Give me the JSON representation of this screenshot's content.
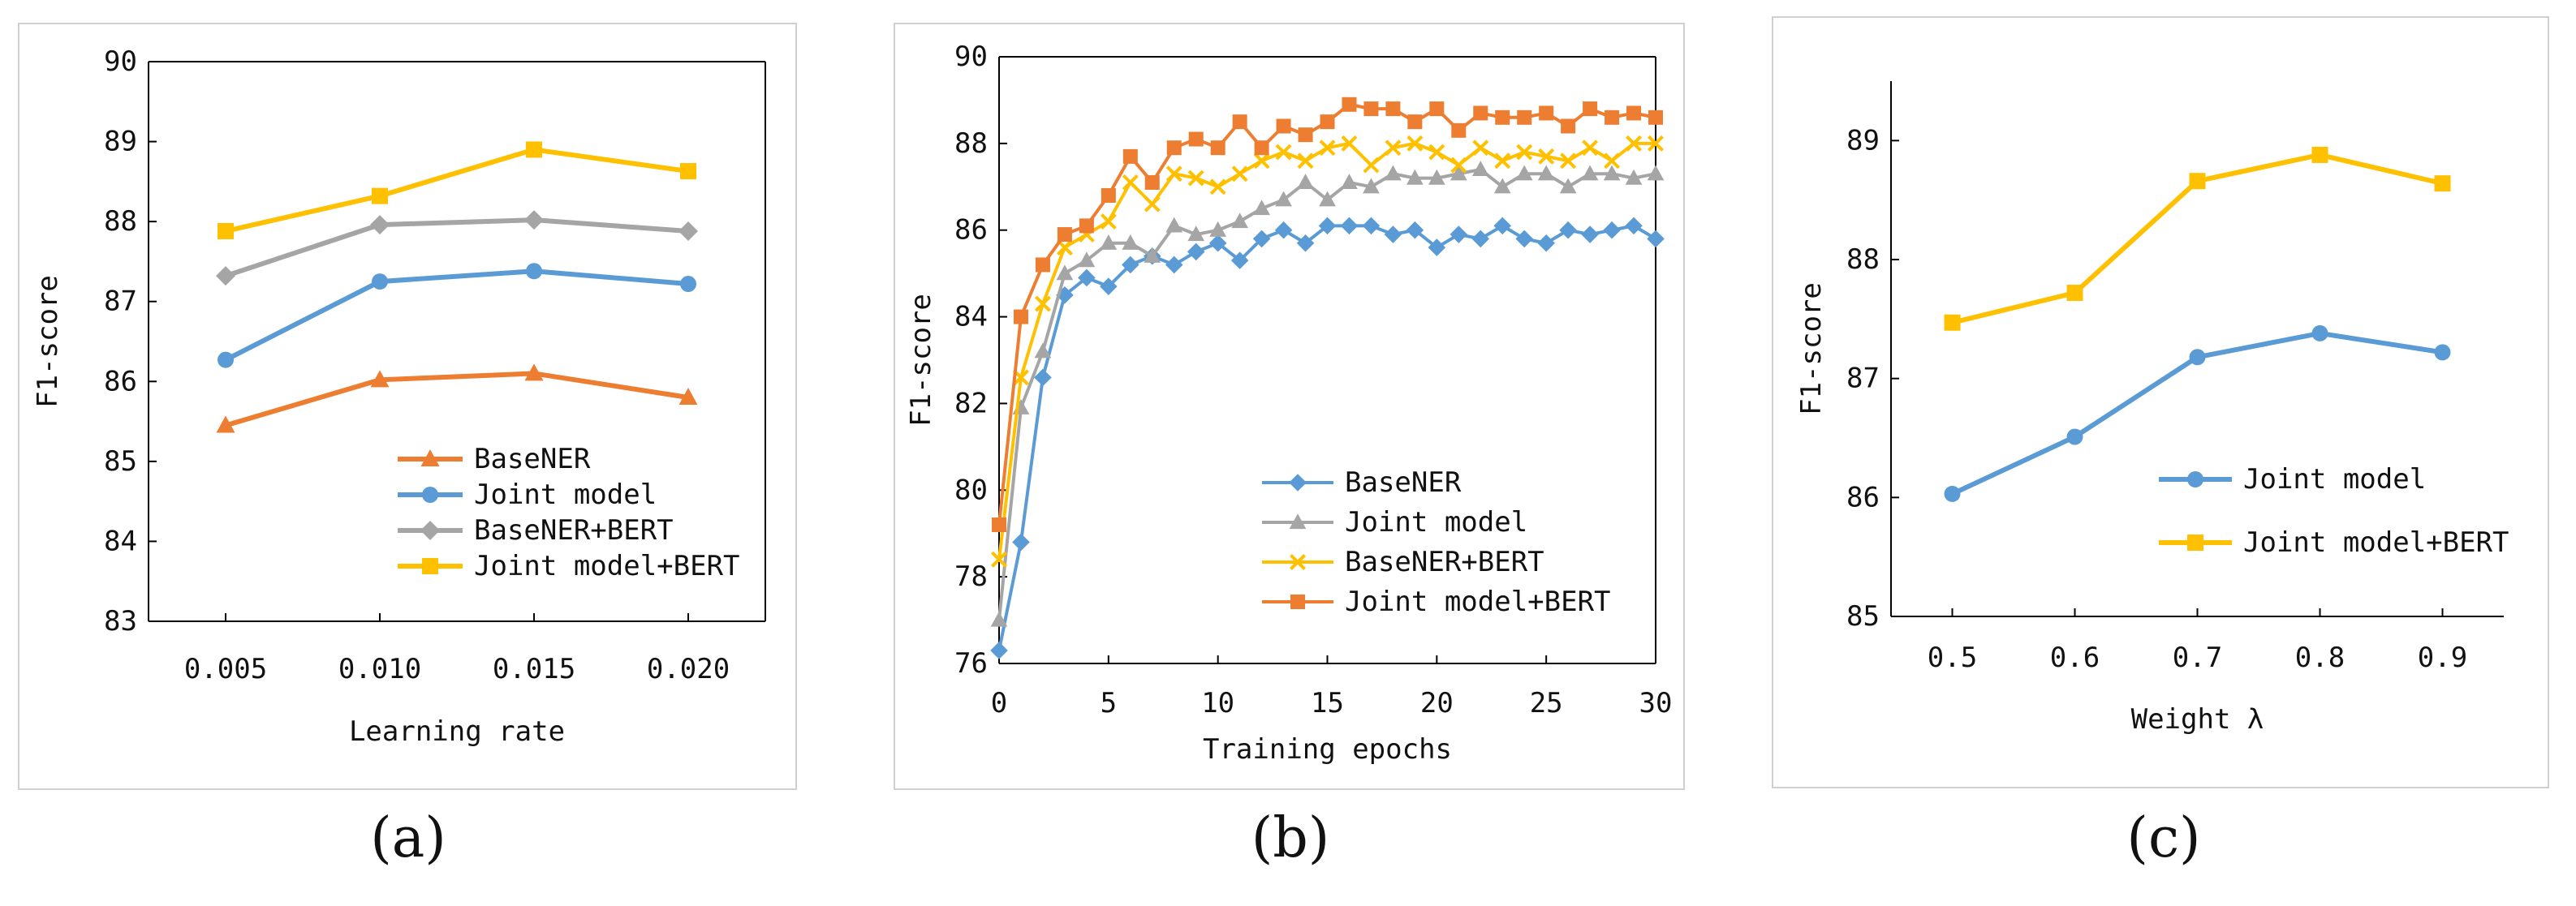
{
  "panel_labels": [
    "(a)",
    "(b)",
    "(c)"
  ],
  "chart_data": [
    {
      "id": "a",
      "type": "line",
      "title": "",
      "xlabel": "Learning rate",
      "ylabel": "F1-score",
      "categories": [
        "0.005",
        "0.010",
        "0.015",
        "0.020"
      ],
      "ylim": [
        83,
        90
      ],
      "yticks": [
        83,
        84,
        85,
        86,
        87,
        88,
        89,
        90
      ],
      "grid": false,
      "legend_position": "bottom-right",
      "series": [
        {
          "name": "BaseNER",
          "marker": "triangle",
          "color": "#ED7D31",
          "values": [
            85.45,
            86.02,
            86.1,
            85.8
          ]
        },
        {
          "name": "Joint model",
          "marker": "circle",
          "color": "#5B9BD5",
          "values": [
            86.27,
            87.25,
            87.38,
            87.22
          ]
        },
        {
          "name": "BaseNER+BERT",
          "marker": "diamond",
          "color": "#A5A5A5",
          "values": [
            87.32,
            87.96,
            88.02,
            87.88
          ]
        },
        {
          "name": "Joint model+BERT",
          "marker": "square",
          "color": "#FFC000",
          "values": [
            87.88,
            88.32,
            88.9,
            88.63
          ]
        }
      ]
    },
    {
      "id": "b",
      "type": "line",
      "title": "",
      "xlabel": "Training epochs",
      "ylabel": "F1-score",
      "x": [
        0,
        1,
        2,
        3,
        4,
        5,
        6,
        7,
        8,
        9,
        10,
        11,
        12,
        13,
        14,
        15,
        16,
        17,
        18,
        19,
        20,
        21,
        22,
        23,
        24,
        25,
        26,
        27,
        28,
        29,
        30
      ],
      "xticks": [
        0,
        5,
        10,
        15,
        20,
        25,
        30
      ],
      "xlim": [
        0,
        30
      ],
      "ylim": [
        76,
        90
      ],
      "yticks": [
        76,
        78,
        80,
        82,
        84,
        86,
        88,
        90
      ],
      "grid": false,
      "legend_position": "bottom-right",
      "series": [
        {
          "name": "BaseNER",
          "marker": "diamond",
          "color": "#5B9BD5",
          "values": [
            76.3,
            78.8,
            82.6,
            84.5,
            84.9,
            84.7,
            85.2,
            85.4,
            85.2,
            85.5,
            85.7,
            85.3,
            85.8,
            86.0,
            85.7,
            86.1,
            86.1,
            86.1,
            85.9,
            86.0,
            85.6,
            85.9,
            85.8,
            86.1,
            85.8,
            85.7,
            86.0,
            85.9,
            86.0,
            86.1,
            85.8
          ]
        },
        {
          "name": "Joint model",
          "marker": "triangle",
          "color": "#A5A5A5",
          "values": [
            77.0,
            81.9,
            83.2,
            85.0,
            85.3,
            85.7,
            85.7,
            85.4,
            86.1,
            85.9,
            86.0,
            86.2,
            86.5,
            86.7,
            87.1,
            86.7,
            87.1,
            87.0,
            87.3,
            87.2,
            87.2,
            87.3,
            87.4,
            87.0,
            87.3,
            87.3,
            87.0,
            87.3,
            87.3,
            87.2,
            87.3
          ]
        },
        {
          "name": "BaseNER+BERT",
          "marker": "x",
          "color": "#FFC000",
          "values": [
            78.4,
            82.6,
            84.3,
            85.6,
            85.9,
            86.2,
            87.1,
            86.6,
            87.3,
            87.2,
            87.0,
            87.3,
            87.6,
            87.8,
            87.6,
            87.9,
            88.0,
            87.5,
            87.9,
            88.0,
            87.8,
            87.5,
            87.9,
            87.6,
            87.8,
            87.7,
            87.6,
            87.9,
            87.6,
            88.0,
            88.0
          ]
        },
        {
          "name": "Joint model+BERT",
          "marker": "square",
          "color": "#ED7D31",
          "values": [
            79.2,
            84.0,
            85.2,
            85.9,
            86.1,
            86.8,
            87.7,
            87.1,
            87.9,
            88.1,
            87.9,
            88.5,
            87.9,
            88.4,
            88.2,
            88.5,
            88.9,
            88.8,
            88.8,
            88.5,
            88.8,
            88.3,
            88.7,
            88.6,
            88.6,
            88.7,
            88.4,
            88.8,
            88.6,
            88.7,
            88.6
          ]
        }
      ]
    },
    {
      "id": "c",
      "type": "line",
      "title": "",
      "xlabel": "Weight λ",
      "ylabel": "F1-score",
      "categories": [
        "0.5",
        "0.6",
        "0.7",
        "0.8",
        "0.9"
      ],
      "ylim": [
        85,
        89.5
      ],
      "yticks": [
        85,
        86,
        87,
        88,
        89
      ],
      "grid": false,
      "legend_position": "bottom-right",
      "series": [
        {
          "name": "Joint model",
          "marker": "circle",
          "color": "#5B9BD5",
          "values": [
            86.03,
            86.51,
            87.18,
            87.38,
            87.22
          ]
        },
        {
          "name": "Joint model+BERT",
          "marker": "square",
          "color": "#FFC000",
          "values": [
            87.47,
            87.72,
            88.66,
            88.88,
            88.64
          ]
        }
      ]
    }
  ]
}
